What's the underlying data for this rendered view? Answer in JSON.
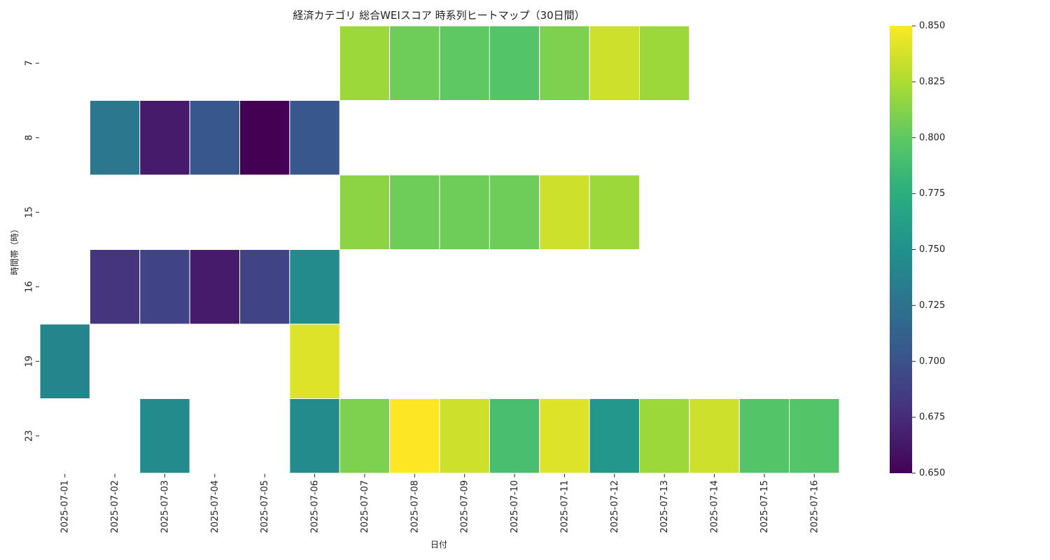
{
  "chart_data": {
    "type": "heatmap",
    "title": "経済カテゴリ 総合WEIスコア 時系列ヒートマップ（30日間）",
    "xlabel": "日付",
    "ylabel": "時間帯（時）",
    "x_categories": [
      "2025-07-01",
      "2025-07-02",
      "2025-07-03",
      "2025-07-04",
      "2025-07-05",
      "2025-07-06",
      "2025-07-07",
      "2025-07-08",
      "2025-07-09",
      "2025-07-10",
      "2025-07-11",
      "2025-07-12",
      "2025-07-13",
      "2025-07-14",
      "2025-07-15",
      "2025-07-16"
    ],
    "y_categories": [
      "7",
      "8",
      "15",
      "16",
      "19",
      "23"
    ],
    "values": [
      [
        null,
        null,
        null,
        null,
        null,
        null,
        0.82,
        0.805,
        0.8,
        0.795,
        0.81,
        0.835,
        0.82,
        null,
        null,
        null
      ],
      [
        null,
        0.73,
        0.665,
        0.705,
        0.65,
        0.705,
        null,
        null,
        null,
        null,
        null,
        null,
        null,
        null,
        null,
        null
      ],
      [
        null,
        null,
        null,
        null,
        null,
        null,
        0.815,
        0.805,
        0.805,
        0.805,
        0.835,
        0.82,
        null,
        null,
        null,
        null
      ],
      [
        null,
        0.68,
        0.69,
        0.665,
        0.69,
        0.745,
        null,
        null,
        null,
        null,
        null,
        null,
        null,
        null,
        null,
        null
      ],
      [
        0.74,
        null,
        null,
        null,
        null,
        0.84,
        null,
        null,
        null,
        null,
        null,
        null,
        null,
        null,
        null,
        null
      ],
      [
        null,
        null,
        0.745,
        null,
        null,
        0.745,
        0.81,
        0.85,
        0.835,
        0.79,
        0.84,
        0.755,
        0.82,
        0.835,
        0.795,
        0.795
      ]
    ],
    "colormap": "viridis",
    "vmin": 0.65,
    "vmax": 0.85,
    "colorbar_ticks": [
      "0.650",
      "0.675",
      "0.700",
      "0.725",
      "0.750",
      "0.775",
      "0.800",
      "0.825",
      "0.850"
    ],
    "missing_color": "#ffffff",
    "cell_border_color": "#ffffff"
  }
}
